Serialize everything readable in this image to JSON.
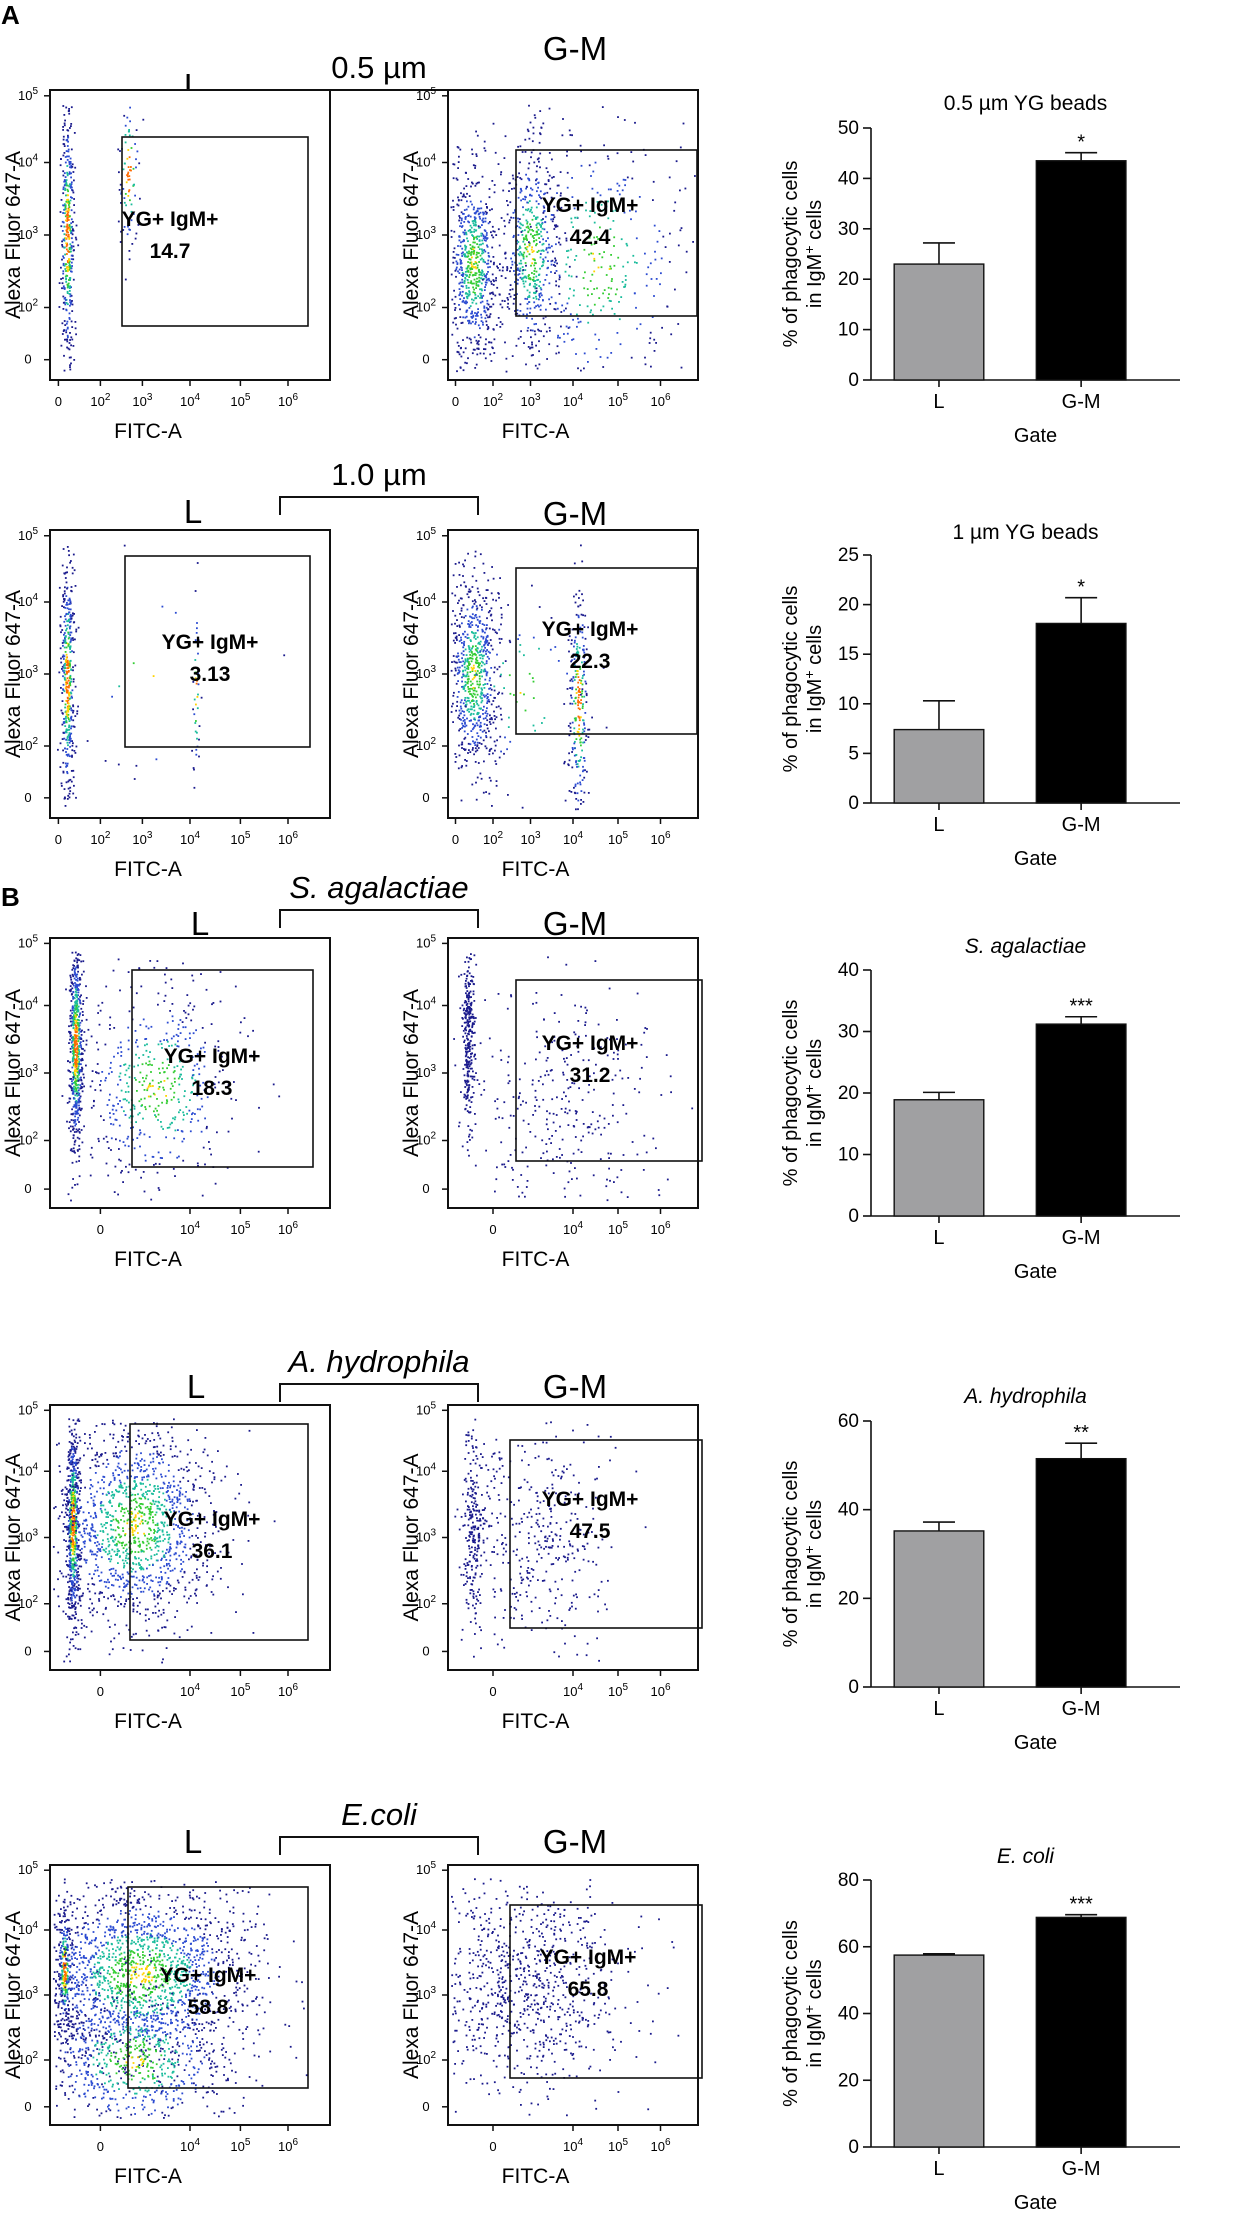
{
  "panel_labels": [
    "A",
    "B"
  ],
  "flow_axes": {
    "x_label": "FITC-A",
    "y_label": "Alexa Fluor 647-A"
  },
  "gate_names": [
    "L",
    "G-M"
  ],
  "gate_label": "YG+ IgM+",
  "chart_data": [
    {
      "type": "bar",
      "title": "0.5 µm YG beads",
      "title_italic": false,
      "condition": "0.5 µm",
      "condition_italic": false,
      "flow_percent": [
        "14.7",
        "42.4"
      ],
      "x_tick_style": "a",
      "categories": [
        "L",
        "G-M"
      ],
      "values": [
        23.0,
        43.5
      ],
      "errors": [
        4.2,
        1.6
      ],
      "colors": [
        "#a0a0a2",
        "#000000"
      ],
      "significance": "*",
      "xlabel": "Gate",
      "ylabel_main": "% of phagocytic cells",
      "ylabel_sub": "in IgM",
      "ylabel_sup": "+",
      "ylabel_end": " cells",
      "ylim": [
        0,
        50
      ],
      "yticks": [
        0,
        10,
        20,
        30,
        40,
        50
      ]
    },
    {
      "type": "bar",
      "title": "1 µm YG beads",
      "title_italic": false,
      "condition": "1.0 µm",
      "condition_italic": false,
      "flow_percent": [
        "3.13",
        "22.3"
      ],
      "x_tick_style": "a",
      "categories": [
        "L",
        "G-M"
      ],
      "values": [
        7.4,
        18.1
      ],
      "errors": [
        2.9,
        2.6
      ],
      "colors": [
        "#a0a0a2",
        "#000000"
      ],
      "significance": "*",
      "xlabel": "Gate",
      "ylabel_main": "% of phagocytic cells",
      "ylabel_sub": "in IgM",
      "ylabel_sup": "+",
      "ylabel_end": " cells",
      "ylim": [
        0,
        25
      ],
      "yticks": [
        0,
        5,
        10,
        15,
        20,
        25
      ]
    },
    {
      "type": "bar",
      "title": "S. agalactiae",
      "title_italic": true,
      "condition": "S. agalactiae",
      "condition_italic": true,
      "flow_percent": [
        "18.3",
        "31.2"
      ],
      "x_tick_style": "b",
      "categories": [
        "L",
        "G-M"
      ],
      "values": [
        18.9,
        31.2
      ],
      "errors": [
        1.2,
        1.2
      ],
      "colors": [
        "#a0a0a2",
        "#000000"
      ],
      "significance": "***",
      "xlabel": "Gate",
      "ylabel_main": "% of phagocytic cells",
      "ylabel_sub": "in IgM",
      "ylabel_sup": "+",
      "ylabel_end": " cells",
      "ylim": [
        0,
        40
      ],
      "yticks": [
        0,
        10,
        20,
        30,
        40
      ]
    },
    {
      "type": "bar",
      "title": "A. hydrophila",
      "title_italic": true,
      "condition": "A. hydrophila",
      "condition_italic": true,
      "flow_percent": [
        "36.1",
        "47.5"
      ],
      "x_tick_style": "b",
      "categories": [
        "L",
        "G-M"
      ],
      "values": [
        35.2,
        51.5
      ],
      "errors": [
        2.0,
        3.5
      ],
      "colors": [
        "#a0a0a2",
        "#000000"
      ],
      "significance": "**",
      "xlabel": "Gate",
      "ylabel_main": "% of phagocytic cells",
      "ylabel_sub": "in IgM",
      "ylabel_sup": "+",
      "ylabel_end": " cells",
      "ylim": [
        0,
        60
      ],
      "yticks": [
        0,
        20,
        40,
        60
      ]
    },
    {
      "type": "bar",
      "title": "E. coli",
      "title_italic": true,
      "condition": "E.coli",
      "condition_italic": true,
      "flow_percent": [
        "58.8",
        "65.8"
      ],
      "x_tick_style": "b",
      "categories": [
        "L",
        "G-M"
      ],
      "values": [
        57.5,
        68.8
      ],
      "errors": [
        0.4,
        0.8
      ],
      "colors": [
        "#a0a0a2",
        "#000000"
      ],
      "significance": "***",
      "xlabel": "Gate",
      "ylabel_main": "% of phagocytic cells",
      "ylabel_sub": "in IgM",
      "ylabel_sup": "+",
      "ylabel_end": " cells",
      "ylim": [
        0,
        80
      ],
      "yticks": [
        0,
        20,
        40,
        60,
        80
      ]
    }
  ]
}
